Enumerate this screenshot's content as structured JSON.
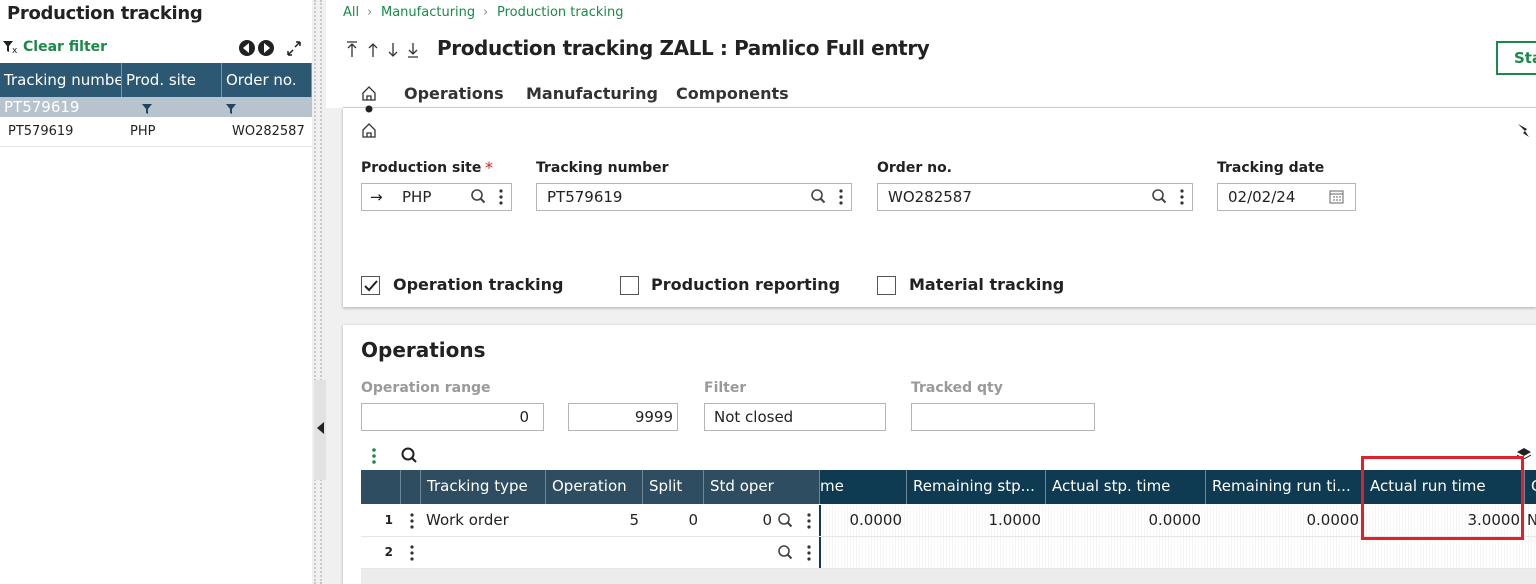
{
  "sidebar": {
    "title": "Production tracking",
    "clear_filter": "Clear filter",
    "columns": [
      "Tracking number",
      "Prod. site",
      "Order no."
    ],
    "selected": "PT579619",
    "rows": [
      [
        "PT579619",
        "PHP",
        "WO282587"
      ]
    ]
  },
  "breadcrumb": [
    "All",
    "Manufacturing",
    "Production tracking"
  ],
  "header": {
    "title": "Production tracking ZALL : Pamlico Full entry",
    "button": "Sta"
  },
  "tabs": [
    "Operations",
    "Manufacturing",
    "Components"
  ],
  "fields": [
    {
      "label": "Production site",
      "value": "PHP"
    },
    {
      "label": "Tracking number",
      "value": "PT579619"
    },
    {
      "label": "Order no.",
      "value": "WO282587"
    },
    {
      "label": "Tracking date",
      "value": "02/02/24"
    }
  ],
  "checkboxes": [
    {
      "label": "Operation tracking",
      "checked": true
    },
    {
      "label": "Production reporting",
      "checked": false
    },
    {
      "label": "Material tracking",
      "checked": false
    }
  ],
  "operations": {
    "title": "Operations",
    "range_label": "Operation range",
    "range_from": "0",
    "range_to": "9999",
    "filter_label": "Filter",
    "filter": "Not closed",
    "tracked_label": "Tracked qty",
    "columns_left": [
      "Tracking type",
      "Operation",
      "Split",
      "Std oper"
    ],
    "columns_right": [
      "me",
      "Remaining stp...",
      "Actual stp. time",
      "Remaining run ti...",
      "Actual run time",
      "C"
    ],
    "rows": [
      {
        "number": "1",
        "left": [
          "Work order",
          "5",
          "0",
          "0"
        ],
        "right": [
          "0.0000",
          "1.0000",
          "0.0000",
          "0.0000",
          "3.0000",
          "N"
        ]
      },
      {
        "number": "2"
      }
    ]
  }
}
